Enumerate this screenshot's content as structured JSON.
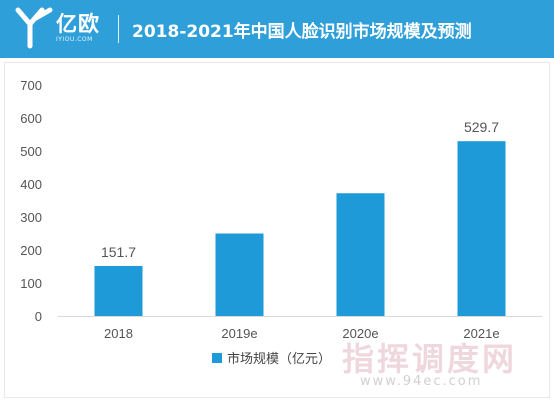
{
  "header": {
    "logo_cn": "亿欧",
    "logo_en": "IYIOU.COM",
    "title": "2018-2021年中国人脸识别市场规模及预测"
  },
  "watermark": {
    "text": "指挥调度网",
    "url": "www.94ec.com"
  },
  "chart_data": {
    "type": "bar",
    "categories": [
      "2018",
      "2019e",
      "2020e",
      "2021e"
    ],
    "series": [
      {
        "name": "市场规模（亿元）",
        "values": [
          151.7,
          250,
          372,
          529.7
        ],
        "data_labels": [
          "151.7",
          "",
          "",
          "529.7"
        ],
        "color": "#1e9ad8"
      }
    ],
    "ylim": [
      0,
      700
    ],
    "yticks": [
      0,
      100,
      200,
      300,
      400,
      500,
      600,
      700
    ],
    "grid": false,
    "legend": "bottom-center"
  }
}
